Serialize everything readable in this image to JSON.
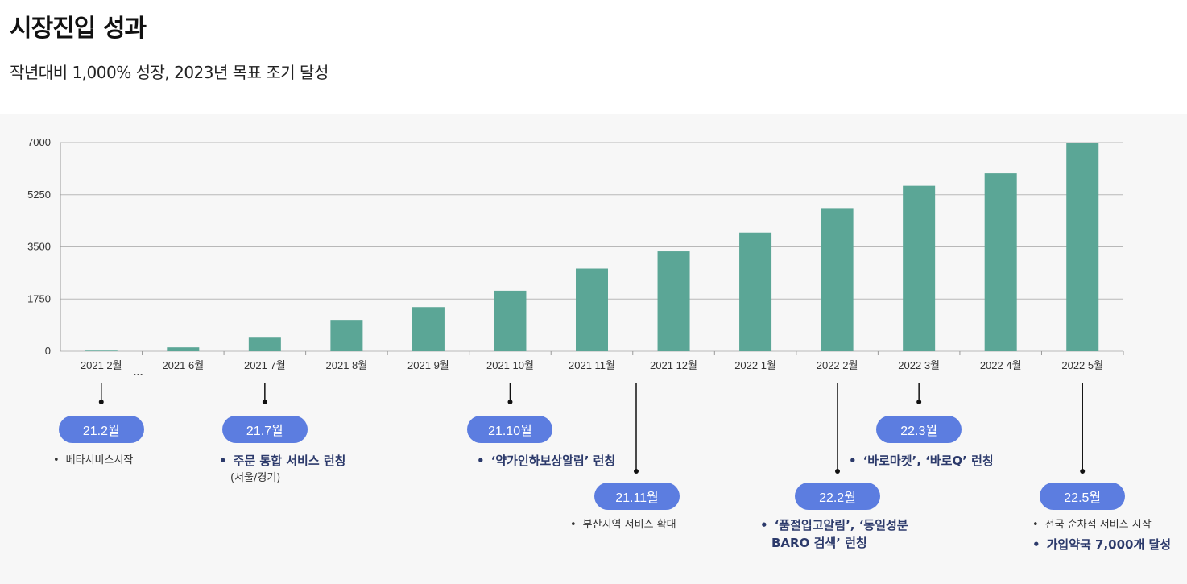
{
  "title": "시장진입 성과",
  "subtitle": "작년대비 1,000% 성장, 2023년 목표 조기 달성",
  "colors": {
    "bar": "#5ba696",
    "pill": "#5c7de0",
    "grid": "#b8b8b8"
  },
  "chart_data": {
    "type": "bar",
    "categories": [
      "2021 2월",
      "2021 6월",
      "2021 7월",
      "2021 8월",
      "2021 9월",
      "2021 10월",
      "2021 11월",
      "2021 12월",
      "2022 1월",
      "2022 2월",
      "2022 3월",
      "2022 4월",
      "2022 5월"
    ],
    "values": [
      20,
      130,
      480,
      1050,
      1480,
      2030,
      2770,
      3350,
      3980,
      4800,
      5550,
      5970,
      7000
    ],
    "ylim": [
      0,
      7000
    ],
    "yticks": [
      0,
      1750,
      3500,
      5250,
      7000
    ],
    "ytick_labels": [
      "0",
      "1750",
      "3500",
      "5250",
      "7000"
    ],
    "grid": true,
    "gap_marker": "…"
  },
  "milestones": [
    {
      "label": "21.2월",
      "notes": [
        {
          "text": "베타서비스시작",
          "bold": false
        }
      ]
    },
    {
      "label": "21.7월",
      "notes": [
        {
          "text": "주문 통합 서비스 런칭",
          "bold": true,
          "sub": "(서울/경기)"
        }
      ]
    },
    {
      "label": "21.10월",
      "notes": [
        {
          "text": "‘약가인하보상알림’ 런칭",
          "bold": true
        }
      ]
    },
    {
      "label": "21.11월",
      "notes": [
        {
          "text": "부산지역 서비스 확대",
          "bold": false
        }
      ]
    },
    {
      "label": "22.2월",
      "notes": [
        {
          "text": "‘품절입고알림’, ‘동일성분",
          "bold": true,
          "sub": "BARO 검색’ 런칭"
        }
      ]
    },
    {
      "label": "22.3월",
      "notes": [
        {
          "text": "‘바로마켓’, ‘바로Q’ 런칭",
          "bold": true
        }
      ]
    },
    {
      "label": "22.5월",
      "notes": [
        {
          "text": "전국 순차적 서비스 시작",
          "bold": false
        },
        {
          "text": "가입약국 7,000개 달성",
          "bold": true
        }
      ]
    }
  ]
}
